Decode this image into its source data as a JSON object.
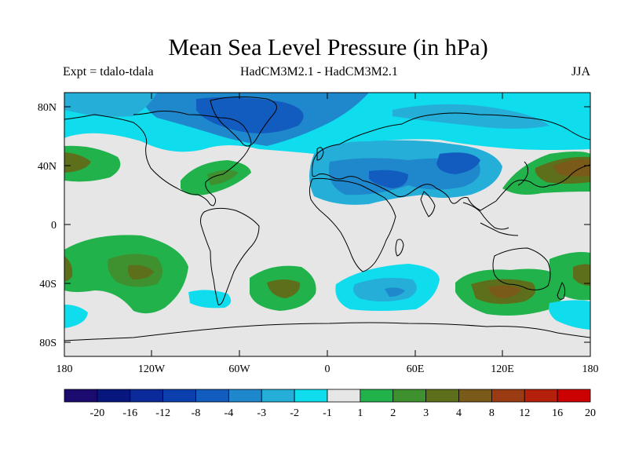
{
  "title": "Mean Sea Level Pressure (in hPa)",
  "subtitle_left": "Expt = tdalo-tdala",
  "subtitle_center": "HadCM3M2.1 - HadCM3M2.1",
  "subtitle_right": "JJA",
  "lat_ticks": [
    "80N",
    "40N",
    "0",
    "40S",
    "80S"
  ],
  "lon_ticks": [
    "180",
    "120W",
    "60W",
    "0",
    "60E",
    "120E",
    "180"
  ],
  "colorbar": {
    "labels": [
      "-20",
      "-16",
      "-12",
      "-8",
      "-4",
      "-3",
      "-2",
      "-1",
      "1",
      "2",
      "3",
      "4",
      "8",
      "12",
      "16",
      "20"
    ],
    "colors": [
      "#1c0b6e",
      "#08177f",
      "#0a2a99",
      "#0c3fae",
      "#125cbf",
      "#1f88cc",
      "#24aed8",
      "#0fdcec",
      "#e6e6e6",
      "#22b24c",
      "#3f902f",
      "#5d6f1a",
      "#7a5a18",
      "#9a3b12",
      "#b5200d",
      "#cc0000"
    ]
  },
  "colors": {
    "ocean_neutral": "#e6e6e6",
    "coastline": "#000000"
  }
}
